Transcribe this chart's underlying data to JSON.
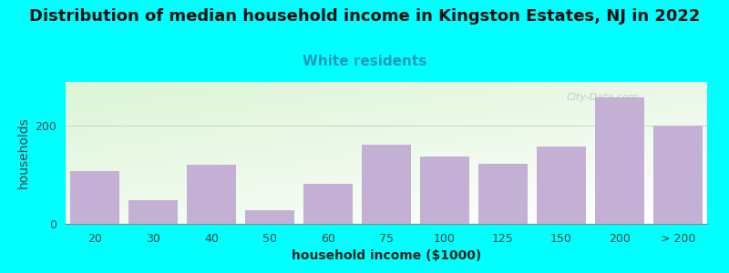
{
  "title": "Distribution of median household income in Kingston Estates, NJ in 2022",
  "subtitle": "White residents",
  "xlabel": "household income ($1000)",
  "ylabel": "households",
  "background_outer": "#00FFFF",
  "bar_color": "#C4B0D5",
  "categories": [
    "20",
    "30",
    "40",
    "50",
    "60",
    "75",
    "100",
    "125",
    "150",
    "200",
    "> 200"
  ],
  "values": [
    108,
    48,
    120,
    28,
    82,
    162,
    138,
    122,
    158,
    258,
    200
  ],
  "ylim": [
    0,
    290
  ],
  "yticks": [
    0,
    200
  ],
  "title_fontsize": 13,
  "subtitle_fontsize": 11,
  "subtitle_color": "#2299BB",
  "axis_label_fontsize": 10,
  "tick_fontsize": 9,
  "watermark": "City-Data.com",
  "grad_topleft": [
    0.86,
    0.96,
    0.84
  ],
  "grad_botright": [
    1.0,
    1.0,
    1.0
  ]
}
